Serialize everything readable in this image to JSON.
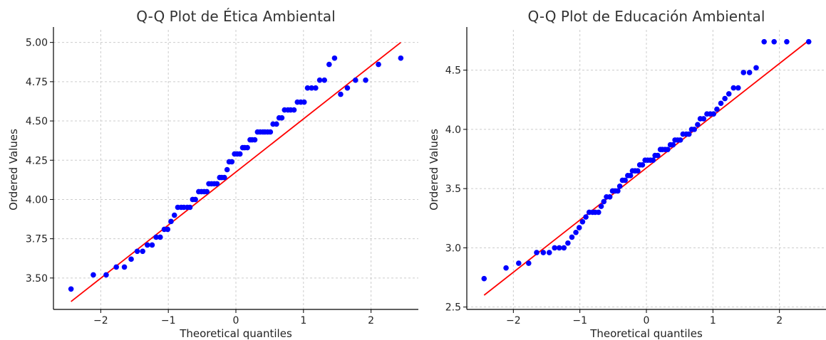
{
  "colors": {
    "points": "#0000ff",
    "fit_line": "#ff0000",
    "grid": "#cccccc"
  },
  "chart_data": [
    {
      "type": "scatter",
      "title": "Q-Q Plot de Ética Ambiental",
      "xlabel": "Theoretical quantiles",
      "ylabel": "Ordered Values",
      "xlim": [
        -2.7,
        2.7
      ],
      "ylim": [
        3.3,
        5.08
      ],
      "xticks": [
        -2,
        -1,
        0,
        1,
        2
      ],
      "xtick_labels": [
        "−2",
        "−1",
        "0",
        "1",
        "2"
      ],
      "yticks": [
        3.5,
        3.75,
        4.0,
        4.25,
        4.5,
        4.75,
        5.0
      ],
      "ytick_labels": [
        "3.50",
        "3.75",
        "4.00",
        "4.25",
        "4.50",
        "4.75",
        "5.00"
      ],
      "grid": true,
      "fit_line": {
        "x": [
          -2.44,
          2.44
        ],
        "y": [
          3.35,
          5.0
        ]
      },
      "series": [
        {
          "x": [
            -2.44,
            -2.11,
            -1.92,
            -1.77,
            -1.65,
            -1.55,
            -1.46,
            -1.38,
            -1.31,
            -1.24,
            -1.18,
            -1.12,
            -1.06,
            -1.01,
            -0.96,
            -0.91,
            -0.86,
            -0.81,
            -0.77,
            -0.72,
            -0.68,
            -0.64,
            -0.6,
            -0.55,
            -0.51,
            -0.47,
            -0.43,
            -0.4,
            -0.36,
            -0.32,
            -0.28,
            -0.24,
            -0.21,
            -0.17,
            -0.13,
            -0.1,
            -0.06,
            -0.02,
            0.02,
            0.06,
            0.1,
            0.13,
            0.17,
            0.21,
            0.24,
            0.28,
            0.32,
            0.36,
            0.4,
            0.43,
            0.47,
            0.51,
            0.55,
            0.6,
            0.64,
            0.68,
            0.72,
            0.77,
            0.81,
            0.86,
            0.91,
            0.96,
            1.01,
            1.06,
            1.12,
            1.18,
            1.24,
            1.31,
            1.38,
            1.46,
            1.55,
            1.65,
            1.77,
            1.92,
            2.11,
            2.44
          ],
          "y": [
            3.43,
            3.52,
            3.52,
            3.57,
            3.57,
            3.62,
            3.67,
            3.67,
            3.71,
            3.71,
            3.76,
            3.76,
            3.81,
            3.81,
            3.86,
            3.9,
            3.95,
            3.95,
            3.95,
            3.95,
            3.95,
            4.0,
            4.0,
            4.05,
            4.05,
            4.05,
            4.05,
            4.1,
            4.1,
            4.1,
            4.1,
            4.14,
            4.14,
            4.14,
            4.19,
            4.24,
            4.24,
            4.29,
            4.29,
            4.29,
            4.33,
            4.33,
            4.33,
            4.38,
            4.38,
            4.38,
            4.43,
            4.43,
            4.43,
            4.43,
            4.43,
            4.43,
            4.48,
            4.48,
            4.52,
            4.52,
            4.57,
            4.57,
            4.57,
            4.57,
            4.62,
            4.62,
            4.62,
            4.71,
            4.71,
            4.71,
            4.76,
            4.76,
            4.86,
            4.9,
            4.67,
            4.71,
            4.76,
            4.76,
            4.86,
            4.9
          ]
        }
      ]
    },
    {
      "type": "scatter",
      "title": "Q-Q Plot de Educación Ambiental",
      "xlabel": "Theoretical quantiles",
      "ylabel": "Ordered Values",
      "xlim": [
        -2.7,
        2.7
      ],
      "ylim": [
        2.48,
        4.84
      ],
      "xticks": [
        -2,
        -1,
        0,
        1,
        2
      ],
      "xtick_labels": [
        "−2",
        "−1",
        "0",
        "1",
        "2"
      ],
      "yticks": [
        2.5,
        3.0,
        3.5,
        4.0,
        4.5
      ],
      "ytick_labels": [
        "2.5",
        "3.0",
        "3.5",
        "4.0",
        "4.5"
      ],
      "grid": true,
      "fit_line": {
        "x": [
          -2.44,
          2.44
        ],
        "y": [
          2.6,
          4.75
        ]
      },
      "series": [
        {
          "x": [
            -2.44,
            -2.11,
            -1.92,
            -1.77,
            -1.65,
            -1.55,
            -1.46,
            -1.38,
            -1.31,
            -1.24,
            -1.18,
            -1.12,
            -1.06,
            -1.01,
            -0.96,
            -0.91,
            -0.86,
            -0.81,
            -0.77,
            -0.72,
            -0.68,
            -0.64,
            -0.6,
            -0.55,
            -0.51,
            -0.47,
            -0.43,
            -0.4,
            -0.36,
            -0.32,
            -0.28,
            -0.24,
            -0.21,
            -0.17,
            -0.13,
            -0.1,
            -0.06,
            -0.02,
            0.02,
            0.06,
            0.1,
            0.13,
            0.17,
            0.21,
            0.24,
            0.28,
            0.32,
            0.36,
            0.4,
            0.43,
            0.47,
            0.51,
            0.55,
            0.6,
            0.64,
            0.68,
            0.72,
            0.77,
            0.81,
            0.86,
            0.91,
            0.96,
            1.01,
            1.06,
            1.12,
            1.18,
            1.24,
            1.31,
            1.38,
            1.46,
            1.55,
            1.65,
            1.77,
            1.92,
            2.11,
            2.44
          ],
          "y": [
            2.74,
            2.83,
            2.87,
            2.87,
            2.96,
            2.96,
            2.96,
            3.0,
            3.0,
            3.0,
            3.04,
            3.09,
            3.13,
            3.17,
            3.22,
            3.26,
            3.3,
            3.3,
            3.3,
            3.3,
            3.35,
            3.39,
            3.43,
            3.43,
            3.48,
            3.48,
            3.48,
            3.52,
            3.57,
            3.57,
            3.61,
            3.61,
            3.65,
            3.65,
            3.65,
            3.7,
            3.7,
            3.74,
            3.74,
            3.74,
            3.74,
            3.78,
            3.78,
            3.83,
            3.83,
            3.83,
            3.83,
            3.87,
            3.87,
            3.91,
            3.91,
            3.91,
            3.96,
            3.96,
            3.96,
            4.0,
            4.0,
            4.04,
            4.09,
            4.09,
            4.13,
            4.13,
            4.13,
            4.17,
            4.22,
            4.26,
            4.3,
            4.35,
            4.35,
            4.48,
            4.48,
            4.52,
            4.74,
            4.74,
            4.74,
            4.74
          ]
        }
      ]
    }
  ]
}
